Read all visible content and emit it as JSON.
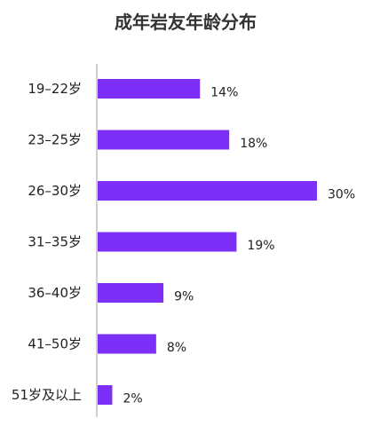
{
  "chart_data": {
    "type": "bar",
    "orientation": "horizontal",
    "title": "成年岩友年龄分布",
    "categories": [
      "19–22岁",
      "23–25岁",
      "26–30岁",
      "31–35岁",
      "36–40岁",
      "41–50岁",
      "51岁及以上"
    ],
    "values": [
      14,
      18,
      30,
      19,
      9,
      8,
      2
    ],
    "value_labels": [
      "14%",
      "18%",
      "30%",
      "19%",
      "9%",
      "8%",
      "2%"
    ],
    "unit": "%",
    "xlim": [
      0,
      30
    ],
    "grid": false,
    "legend": "none",
    "bar_color": "#7b2ff7",
    "axis_color": "#d0d0d0"
  }
}
